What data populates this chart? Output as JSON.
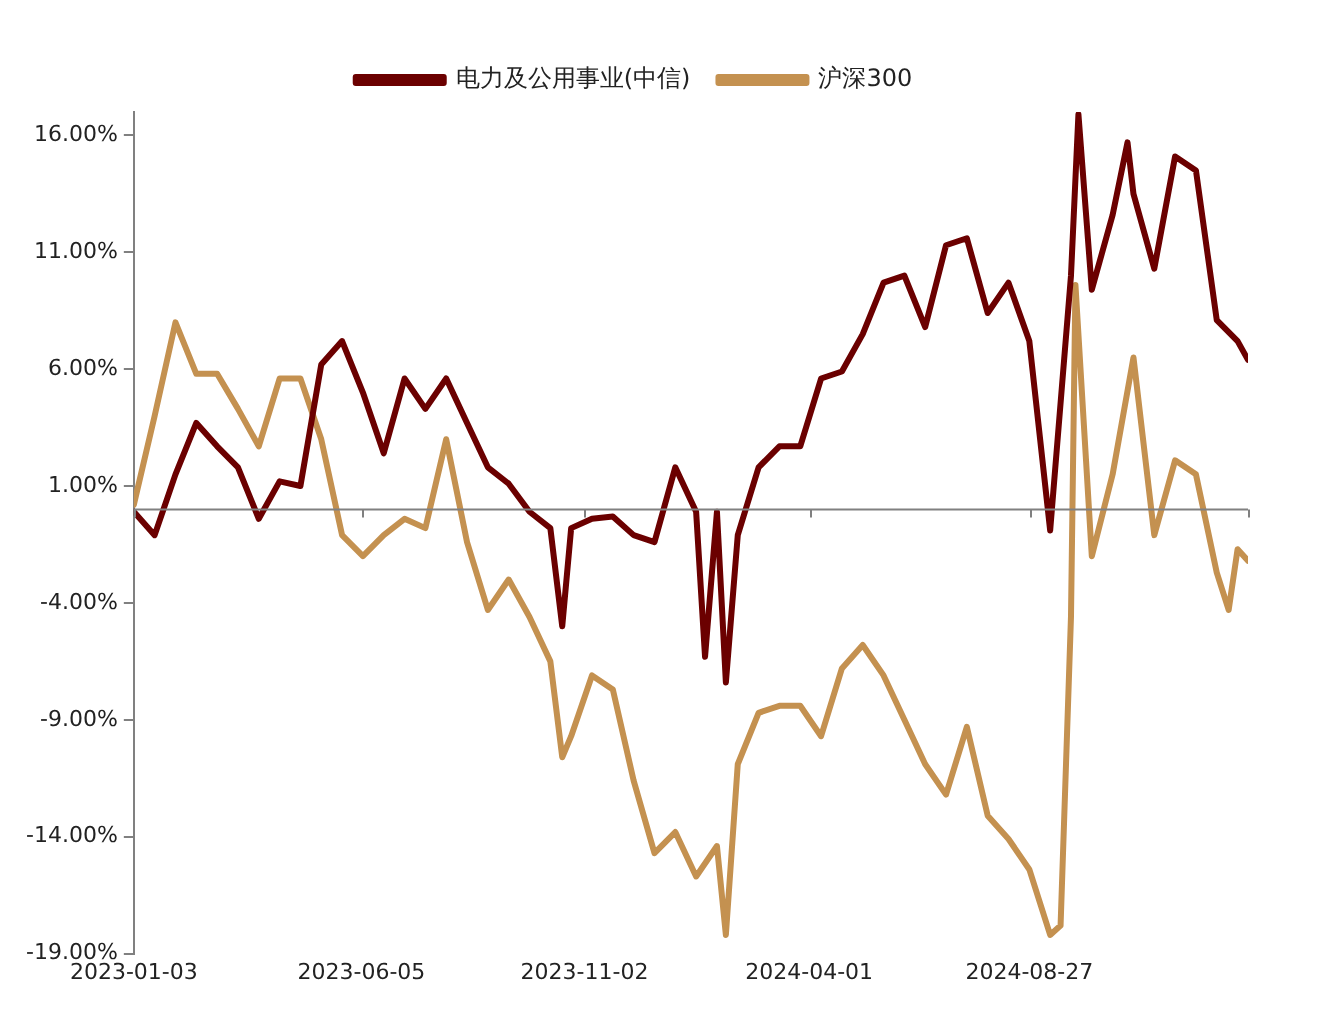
{
  "chart_data": {
    "type": "line",
    "legend": "top",
    "grid": false,
    "marker": "none",
    "line_style": "solid",
    "xlim": [
      "2023-01-03",
      "2025-01-21"
    ],
    "xticks": [
      "2023-01-03",
      "2023-06-05",
      "2023-11-02",
      "2024-04-01",
      "2024-08-27"
    ],
    "ylim": [
      -19,
      17
    ],
    "yticks": [
      {
        "value": -19,
        "label": "-19.00%"
      },
      {
        "value": -14,
        "label": "-14.00%"
      },
      {
        "value": -9,
        "label": "-9.00%"
      },
      {
        "value": -4,
        "label": "-4.00%"
      },
      {
        "value": 1,
        "label": "1.00%"
      },
      {
        "value": 6,
        "label": "6.00%"
      },
      {
        "value": 11,
        "label": "11.00%"
      },
      {
        "value": 16,
        "label": "16.00%"
      }
    ],
    "series": [
      {
        "name": "电力及公用事业(中信)",
        "color": "#6b0000",
        "x": [
          "2023-01-03",
          "2023-01-17",
          "2023-01-31",
          "2023-02-14",
          "2023-02-28",
          "2023-03-14",
          "2023-03-28",
          "2023-04-11",
          "2023-04-25",
          "2023-05-09",
          "2023-05-23",
          "2023-06-06",
          "2023-06-20",
          "2023-07-04",
          "2023-07-18",
          "2023-08-01",
          "2023-08-15",
          "2023-08-29",
          "2023-09-12",
          "2023-09-26",
          "2023-10-10",
          "2023-10-18",
          "2023-10-24",
          "2023-11-07",
          "2023-11-21",
          "2023-12-05",
          "2023-12-19",
          "2024-01-02",
          "2024-01-16",
          "2024-01-22",
          "2024-01-30",
          "2024-02-05",
          "2024-02-13",
          "2024-02-27",
          "2024-03-12",
          "2024-03-26",
          "2024-04-09",
          "2024-04-23",
          "2024-05-07",
          "2024-05-21",
          "2024-06-04",
          "2024-06-18",
          "2024-07-02",
          "2024-07-16",
          "2024-07-30",
          "2024-08-13",
          "2024-08-27",
          "2024-09-10",
          "2024-09-24",
          "2024-09-29",
          "2024-10-08",
          "2024-10-22",
          "2024-11-01",
          "2024-11-05",
          "2024-11-19",
          "2024-12-03",
          "2024-12-17",
          "2024-12-31",
          "2025-01-14",
          "2025-01-21"
        ],
        "values": [
          -0.1,
          -1.1,
          1.5,
          3.7,
          2.7,
          1.8,
          -0.4,
          1.2,
          1.0,
          6.2,
          7.2,
          5.0,
          2.4,
          5.6,
          4.3,
          5.6,
          3.7,
          1.8,
          1.1,
          -0.1,
          -0.8,
          -5.0,
          -0.8,
          -0.4,
          -0.3,
          -1.1,
          -1.4,
          1.8,
          -0.1,
          -6.3,
          -0.1,
          -7.4,
          -1.1,
          1.8,
          2.7,
          2.7,
          5.6,
          5.9,
          7.5,
          9.7,
          10.0,
          7.8,
          11.3,
          11.6,
          8.4,
          9.7,
          7.2,
          -0.9,
          10.0,
          16.9,
          9.4,
          12.6,
          15.7,
          13.5,
          10.3,
          15.1,
          14.5,
          8.1,
          7.2,
          6.4
        ]
      },
      {
        "name": "沪深300",
        "color": "#c49150",
        "x": [
          "2023-01-03",
          "2023-01-17",
          "2023-01-31",
          "2023-02-14",
          "2023-02-28",
          "2023-03-14",
          "2023-03-28",
          "2023-04-11",
          "2023-04-25",
          "2023-05-09",
          "2023-05-23",
          "2023-06-06",
          "2023-06-20",
          "2023-07-04",
          "2023-07-18",
          "2023-08-01",
          "2023-08-15",
          "2023-08-29",
          "2023-09-12",
          "2023-09-26",
          "2023-10-10",
          "2023-10-18",
          "2023-10-24",
          "2023-11-07",
          "2023-11-21",
          "2023-12-05",
          "2023-12-19",
          "2024-01-02",
          "2024-01-16",
          "2024-01-30",
          "2024-02-05",
          "2024-02-13",
          "2024-02-27",
          "2024-03-12",
          "2024-03-26",
          "2024-04-09",
          "2024-04-23",
          "2024-05-07",
          "2024-05-21",
          "2024-06-04",
          "2024-06-18",
          "2024-07-02",
          "2024-07-16",
          "2024-07-30",
          "2024-08-13",
          "2024-08-27",
          "2024-09-10",
          "2024-09-17",
          "2024-09-24",
          "2024-09-27",
          "2024-10-08",
          "2024-10-22",
          "2024-11-05",
          "2024-11-19",
          "2024-12-03",
          "2024-12-17",
          "2024-12-31",
          "2025-01-08",
          "2025-01-14",
          "2025-01-21"
        ],
        "values": [
          0.2,
          4.0,
          8.0,
          5.8,
          5.8,
          4.3,
          2.7,
          5.6,
          5.6,
          3.0,
          -1.1,
          -2.0,
          -1.1,
          -0.4,
          -0.8,
          3.0,
          -1.4,
          -4.3,
          -3.0,
          -4.6,
          -6.5,
          -10.6,
          -9.7,
          -7.1,
          -7.7,
          -11.6,
          -14.7,
          -13.8,
          -15.7,
          -14.4,
          -18.2,
          -10.9,
          -8.7,
          -8.4,
          -8.4,
          -9.7,
          -6.8,
          -5.8,
          -7.1,
          -9.0,
          -10.9,
          -12.2,
          -9.3,
          -13.1,
          -14.1,
          -15.4,
          -18.2,
          -17.8,
          -4.6,
          9.6,
          -2.0,
          1.5,
          6.5,
          -1.1,
          2.1,
          1.5,
          -2.7,
          -4.3,
          -1.7,
          -2.2
        ]
      }
    ]
  }
}
